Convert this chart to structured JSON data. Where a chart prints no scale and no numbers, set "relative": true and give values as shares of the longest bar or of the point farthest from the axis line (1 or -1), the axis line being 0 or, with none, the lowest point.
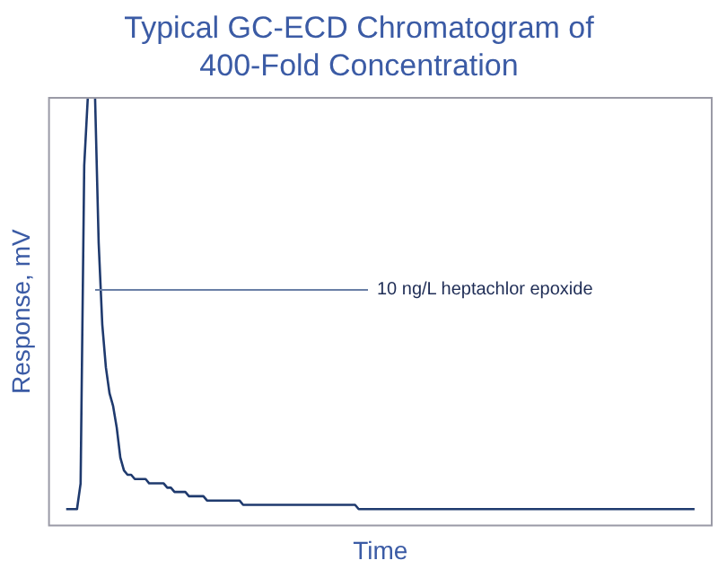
{
  "chart_data": {
    "type": "line",
    "title": "Typical GC-ECD Chromatogram of 400-Fold Concentration",
    "xlabel": "Time",
    "ylabel": "Response, mV",
    "relative": true,
    "grid": false,
    "legend": false,
    "marker": "none",
    "line_style": "solid",
    "annotations": [
      "10 ng/L heptachlor epoxide"
    ],
    "categories": [
      null,
      null,
      null,
      null,
      null,
      null,
      null,
      null,
      null,
      null,
      null,
      null,
      null,
      null,
      null,
      null,
      null,
      null,
      null,
      null,
      null,
      null,
      null,
      null,
      null,
      null,
      null,
      null,
      null,
      null,
      null,
      null,
      null,
      null,
      null,
      null,
      null,
      null,
      null,
      null,
      null,
      null,
      null,
      null,
      null,
      null,
      null,
      null,
      null,
      null,
      null,
      null,
      null,
      null,
      null,
      null,
      null,
      null,
      null,
      null,
      null,
      null,
      null,
      null,
      null,
      null,
      null,
      null,
      null,
      null,
      null,
      null,
      null,
      null,
      null,
      null,
      null,
      null,
      null,
      null,
      null,
      null,
      null,
      null,
      null,
      null,
      null,
      null,
      null,
      null,
      null,
      null,
      null,
      null,
      null,
      null,
      null,
      null,
      null,
      null,
      null,
      null,
      null,
      null,
      null,
      null,
      null,
      null,
      null,
      null,
      null,
      null,
      null,
      null,
      null,
      null,
      null,
      null,
      null,
      null,
      null,
      null,
      null,
      null,
      null,
      null,
      null,
      null,
      null,
      null,
      null,
      null,
      null,
      null,
      null,
      null,
      null,
      null,
      null,
      null,
      null,
      null,
      null,
      null,
      null,
      null,
      null,
      null,
      null,
      null,
      null,
      null,
      null,
      null,
      null,
      null,
      null,
      null,
      null,
      null,
      null,
      null,
      null,
      null,
      null,
      null,
      null,
      null,
      null,
      null,
      null,
      null,
      null,
      null,
      null,
      null,
      null,
      null,
      null,
      null,
      null,
      null,
      null,
      null,
      null
    ],
    "series": [
      {
        "color": "#1f3a6e",
        "values": [
          null,
          null,
          null,
          null,
          null,
          0.04,
          0.04,
          0.04,
          0.04,
          0.1,
          0.84,
          1,
          1,
          1,
          0.66,
          0.47,
          0.37,
          0.31,
          0.28,
          0.23,
          0.16,
          0.13,
          0.12,
          0.12,
          0.11,
          0.11,
          0.11,
          0.11,
          0.1,
          0.1,
          0.1,
          0.1,
          0.1,
          0.09,
          0.09,
          0.08,
          0.08,
          0.08,
          0.08,
          0.07,
          0.07,
          0.07,
          0.07,
          0.07,
          0.06,
          0.06,
          0.06,
          0.06,
          0.06,
          0.06,
          0.06,
          0.06,
          0.06,
          0.06,
          0.05,
          0.05,
          0.05,
          0.05,
          0.05,
          0.05,
          0.05,
          0.05,
          0.05,
          0.05,
          0.05,
          0.05,
          0.05,
          0.05,
          0.05,
          0.05,
          0.05,
          0.05,
          0.05,
          0.05,
          0.05,
          0.05,
          0.05,
          0.05,
          0.05,
          0.05,
          0.05,
          0.05,
          0.05,
          0.05,
          0.05,
          0.05,
          0.04,
          0.04,
          0.04,
          0.04,
          0.04,
          0.04,
          0.04,
          0.04,
          0.04,
          0.04,
          0.04,
          0.04,
          0.04,
          0.04,
          0.04,
          0.04,
          0.04,
          0.04,
          0.04,
          0.04,
          0.04,
          0.04,
          0.04,
          0.04,
          0.04,
          0.04,
          0.04,
          0.04,
          0.04,
          0.04,
          0.04,
          0.04,
          0.04,
          0.04,
          0.04,
          0.04,
          0.04,
          0.04,
          0.04,
          0.04,
          0.04,
          0.04,
          0.04,
          0.04,
          0.04,
          0.04,
          0.04,
          0.04,
          0.04,
          0.04,
          0.04,
          0.04,
          0.04,
          0.04,
          0.04,
          0.04,
          0.04,
          0.04,
          0.04,
          0.04,
          0.04,
          0.04,
          0.04,
          0.04,
          0.04,
          0.04,
          0.04,
          0.04,
          0.04,
          0.04,
          0.04,
          0.04,
          0.04,
          0.04,
          0.04,
          0.04,
          0.04,
          0.04,
          0.04,
          0.04,
          0.04,
          0.04,
          0.04,
          0.04,
          0.04,
          0.04,
          0.04,
          0.04,
          0.04,
          0.04,
          0.04,
          0.04,
          0.04,
          0.04,
          null,
          null,
          null,
          null,
          null
        ]
      }
    ]
  }
}
